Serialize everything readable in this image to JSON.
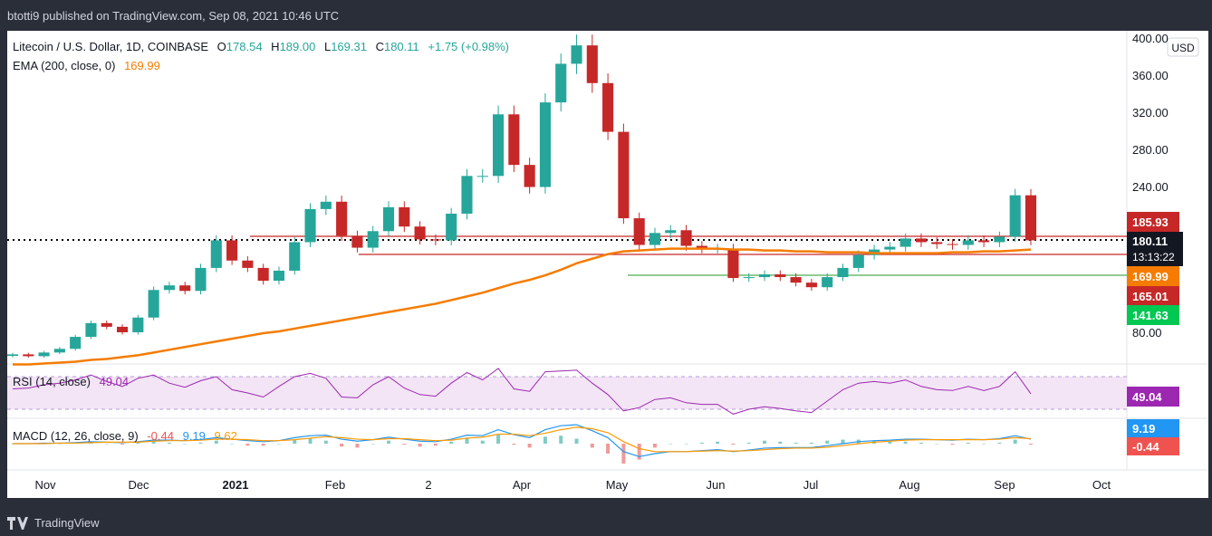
{
  "header": {
    "published": "btotti9 published on TradingView.com, Sep 08, 2021 10:46 UTC"
  },
  "footer": {
    "brand": "TradingView",
    "logo_icon": "tradingview-logo-icon"
  },
  "colors": {
    "up": "#26a69a",
    "down": "#c62828",
    "ema": "#f57c00",
    "rsi": "#9c27b0",
    "rsi_band": "#f3e5f5",
    "macd": "#2196f3",
    "signal": "#ff9800",
    "resistance": "#c62828",
    "support": "#4caf50",
    "last_price_line": "#000000"
  },
  "chart_data": [
    {
      "type": "candlestick",
      "title": "Litecoin / U.S. Dollar, 1D, COINBASE",
      "ohlc": {
        "o_label": "O",
        "o": "178.54",
        "h_label": "H",
        "h": "189.00",
        "l_label": "L",
        "l": "169.31",
        "c_label": "C",
        "c": "180.11",
        "change": "+1.75 (+0.98%)"
      },
      "ema_label": "EMA (200, close, 0)",
      "ema_value": "169.99",
      "currency_badge": "USD",
      "y_ticks": [
        "400.00",
        "360.00",
        "320.00",
        "280.00",
        "240.00",
        "80.00"
      ],
      "x_ticks": [
        "Nov",
        "Dec",
        "2021",
        "Feb",
        "2",
        "Apr",
        "May",
        "Jun",
        "Jul",
        "Aug",
        "Sep",
        "Oct"
      ],
      "price_labels": {
        "resistance": "185.93",
        "last": "180.11",
        "countdown": "13:13:22",
        "ema": "169.99",
        "support1": "165.01",
        "support2": "141.63"
      },
      "horizontal_levels": {
        "resistance": 185.93,
        "support1": 165.01,
        "support2": 141.63
      },
      "series": {
        "close": [
          56,
          54,
          58,
          62,
          75,
          90,
          86,
          80,
          96,
          126,
          131,
          125,
          150,
          180,
          158,
          150,
          136,
          147,
          178,
          214,
          222,
          185,
          172,
          190,
          216,
          195,
          181,
          180,
          209,
          250,
          250,
          317,
          262,
          238,
          330,
          372,
          392,
          351,
          298,
          204,
          175,
          188,
          191,
          174,
          171,
          171,
          139,
          140,
          143,
          140,
          134,
          129,
          140,
          150,
          164,
          170,
          173,
          182,
          178,
          176,
          175,
          180,
          178,
          184,
          229,
          180
        ],
        "ema": [
          45,
          45,
          46,
          47,
          48,
          50,
          51,
          53,
          55,
          58,
          61,
          64,
          67,
          70,
          73,
          76,
          79,
          81,
          84,
          87,
          90,
          93,
          96,
          99,
          102,
          105,
          108,
          111,
          115,
          119,
          123,
          128,
          133,
          137,
          142,
          148,
          155,
          160,
          165,
          168,
          169,
          170,
          171,
          171,
          171,
          171,
          170,
          170,
          169,
          169,
          168,
          168,
          167,
          167,
          167,
          166,
          166,
          166,
          166,
          166,
          167,
          167,
          168,
          168,
          169,
          170
        ]
      }
    },
    {
      "type": "line",
      "title": "RSI (14, close)",
      "value_label": "49.04",
      "values": [
        55,
        56,
        60,
        62,
        66,
        72,
        64,
        58,
        68,
        72,
        62,
        57,
        65,
        70,
        54,
        50,
        45,
        58,
        70,
        74,
        68,
        45,
        44,
        60,
        70,
        56,
        48,
        46,
        62,
        75,
        66,
        80,
        55,
        52,
        76,
        77,
        78,
        62,
        48,
        28,
        32,
        42,
        44,
        38,
        36,
        36,
        24,
        30,
        33,
        31,
        28,
        26,
        40,
        54,
        62,
        64,
        62,
        66,
        58,
        54,
        53,
        58,
        53,
        58,
        76,
        49
      ]
    },
    {
      "type": "line",
      "title": "MACD (12, 26, close, 9)",
      "values_text": {
        "hist": "-0.44",
        "macd": "9.19",
        "signal": "9.62"
      },
      "macd": [
        0,
        0,
        1,
        1,
        2,
        4,
        3,
        2,
        4,
        7,
        7,
        6,
        8,
        12,
        9,
        6,
        4,
        6,
        12,
        16,
        17,
        9,
        5,
        8,
        13,
        9,
        5,
        4,
        9,
        17,
        16,
        28,
        18,
        12,
        28,
        36,
        38,
        26,
        12,
        -16,
        -26,
        -20,
        -16,
        -16,
        -14,
        -12,
        -16,
        -13,
        -9,
        -8,
        -8,
        -8,
        -4,
        0,
        4,
        6,
        7,
        9,
        9,
        8,
        7,
        9,
        8,
        10,
        16,
        9
      ],
      "signal": [
        0,
        0,
        0,
        1,
        1,
        2,
        3,
        3,
        3,
        5,
        6,
        6,
        7,
        9,
        9,
        8,
        6,
        6,
        8,
        11,
        14,
        12,
        9,
        8,
        10,
        10,
        8,
        6,
        7,
        11,
        13,
        19,
        19,
        16,
        21,
        28,
        33,
        30,
        22,
        4,
        -10,
        -16,
        -16,
        -16,
        -15,
        -14,
        -15,
        -14,
        -12,
        -10,
        -9,
        -9,
        -7,
        -4,
        0,
        3,
        5,
        7,
        8,
        8,
        8,
        8,
        8,
        9,
        12,
        10
      ]
    }
  ]
}
